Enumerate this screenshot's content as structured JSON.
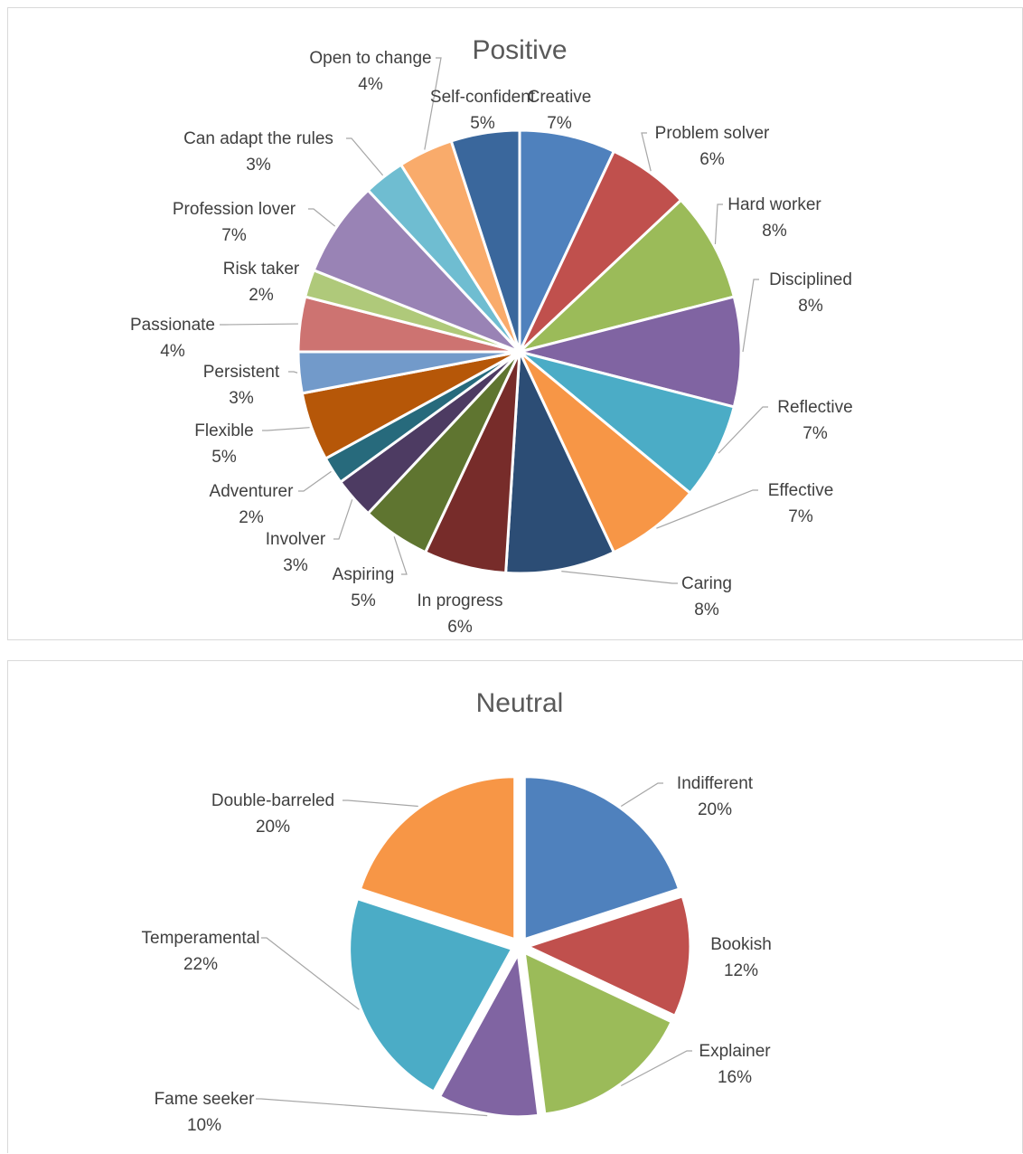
{
  "chart_data": [
    {
      "type": "pie",
      "title": "Positive",
      "slices": [
        {
          "label": "Creative",
          "value": 7,
          "display": "7%",
          "color": "#4F81BD"
        },
        {
          "label": "Problem solver",
          "value": 6,
          "display": "6%",
          "color": "#C0504D"
        },
        {
          "label": "Hard worker",
          "value": 8,
          "display": "8%",
          "color": "#9BBB59"
        },
        {
          "label": "Disciplined",
          "value": 8,
          "display": "8%",
          "color": "#8064A2"
        },
        {
          "label": "Reflective",
          "value": 7,
          "display": "7%",
          "color": "#4BACC6"
        },
        {
          "label": "Effective",
          "value": 7,
          "display": "7%",
          "color": "#F79646"
        },
        {
          "label": "Caring",
          "value": 8,
          "display": "8%",
          "color": "#2C4D75"
        },
        {
          "label": "In progress",
          "value": 6,
          "display": "6%",
          "color": "#772C2A"
        },
        {
          "label": "Aspiring",
          "value": 5,
          "display": "5%",
          "color": "#5F7530"
        },
        {
          "label": "Involver",
          "value": 3,
          "display": "3%",
          "color": "#4D3B62"
        },
        {
          "label": "Adventurer",
          "value": 2,
          "display": "2%",
          "color": "#276A7C"
        },
        {
          "label": "Flexible",
          "value": 5,
          "display": "5%",
          "color": "#B65708"
        },
        {
          "label": "Persistent",
          "value": 3,
          "display": "3%",
          "color": "#729ACA"
        },
        {
          "label": "Passionate",
          "value": 4,
          "display": "4%",
          "color": "#CD7371"
        },
        {
          "label": "Risk taker",
          "value": 2,
          "display": "2%",
          "color": "#AFC97A"
        },
        {
          "label": "Profession lover",
          "value": 7,
          "display": "7%",
          "color": "#9983B5"
        },
        {
          "label": "Can adapt the rules",
          "value": 3,
          "display": "3%",
          "color": "#6FBDD1"
        },
        {
          "label": "Open to change",
          "value": 4,
          "display": "4%",
          "color": "#F9AB6B"
        },
        {
          "label": "Self-confident",
          "value": 5,
          "display": "5%",
          "color": "#3A679C"
        }
      ]
    },
    {
      "type": "pie",
      "title": "Neutral",
      "slices": [
        {
          "label": "Indifferent",
          "value": 20,
          "display": "20%",
          "color": "#4F81BD"
        },
        {
          "label": "Bookish",
          "value": 12,
          "display": "12%",
          "color": "#C0504D"
        },
        {
          "label": "Explainer",
          "value": 16,
          "display": "16%",
          "color": "#9BBB59"
        },
        {
          "label": "Fame seeker",
          "value": 10,
          "display": "10%",
          "color": "#8064A2"
        },
        {
          "label": "Temperamental",
          "value": 22,
          "display": "22%",
          "color": "#4BACC6"
        },
        {
          "label": "Double-barreled",
          "value": 20,
          "display": "20%",
          "color": "#F79646"
        }
      ]
    }
  ]
}
